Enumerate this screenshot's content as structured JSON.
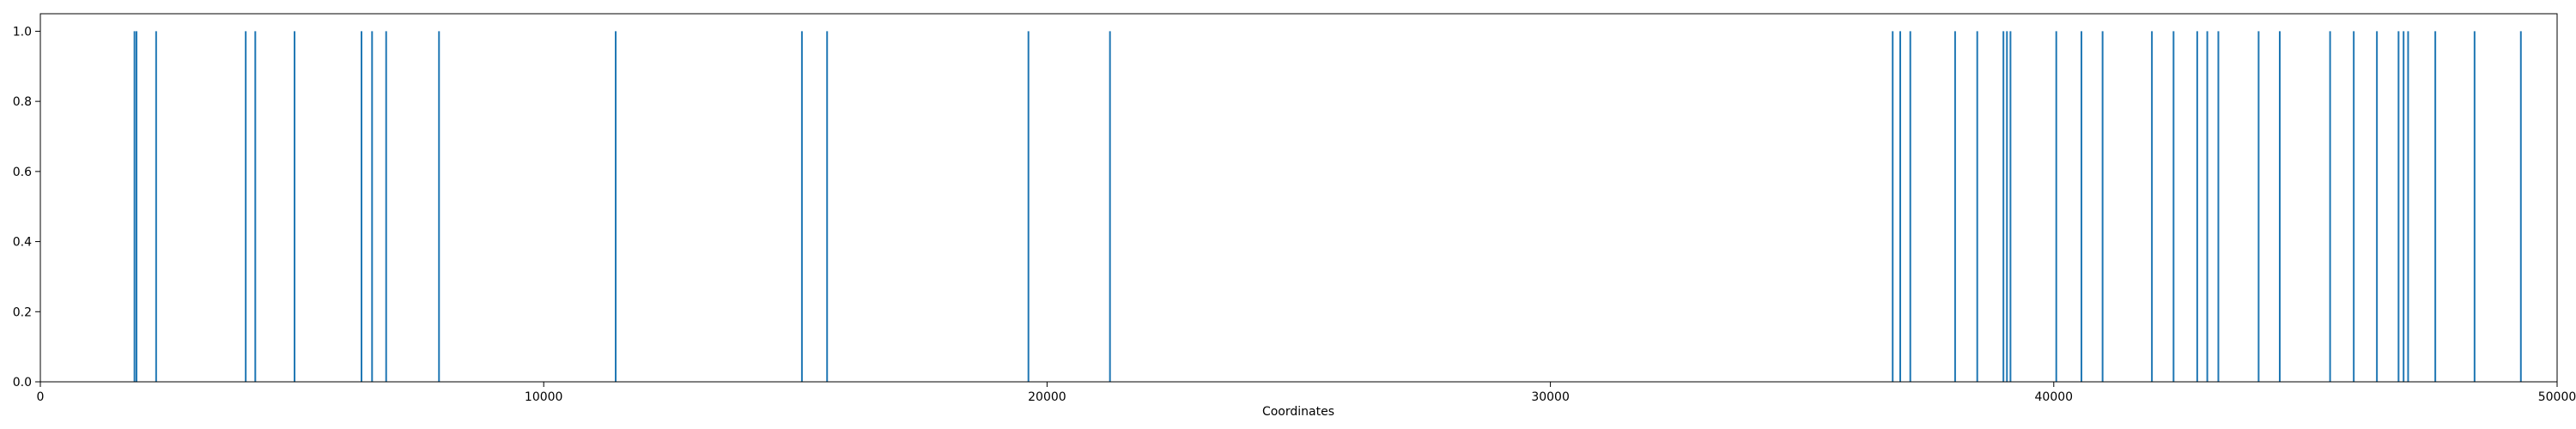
{
  "chart_data": {
    "type": "bar",
    "title": "",
    "xlabel": "Coordinates",
    "ylabel": "",
    "xlim": [
      0,
      50000
    ],
    "ylim": [
      0,
      1.05
    ],
    "xticks": [
      0,
      10000,
      20000,
      30000,
      40000,
      50000
    ],
    "xtick_labels": [
      "0",
      "10000",
      "20000",
      "30000",
      "40000",
      "50000"
    ],
    "yticks": [
      0,
      0.2,
      0.4,
      0.6,
      0.8,
      1.0
    ],
    "ytick_labels": [
      "0.0",
      "0.2",
      "0.4",
      "0.6",
      "0.8",
      "1.0"
    ],
    "grid": false,
    "bar_color": "#1f77b4",
    "x": [
      1870,
      1910,
      2300,
      4080,
      4270,
      5050,
      6380,
      6590,
      6870,
      7920,
      11430,
      15130,
      15630,
      19630,
      21250,
      36800,
      36950,
      37150,
      38040,
      38480,
      39000,
      39070,
      39140,
      40050,
      40550,
      40970,
      41950,
      42380,
      42850,
      43050,
      43270,
      44070,
      44490,
      45490,
      45960,
      46420,
      46850,
      46950,
      47040,
      47580,
      48360,
      49280
    ],
    "values": [
      1,
      1,
      1,
      1,
      1,
      1,
      1,
      1,
      1,
      1,
      1,
      1,
      1,
      1,
      1,
      1,
      1,
      1,
      1,
      1,
      1,
      1,
      1,
      1,
      1,
      1,
      1,
      1,
      1,
      1,
      1,
      1,
      1,
      1,
      1,
      1,
      1,
      1,
      1,
      1,
      1,
      1
    ]
  }
}
